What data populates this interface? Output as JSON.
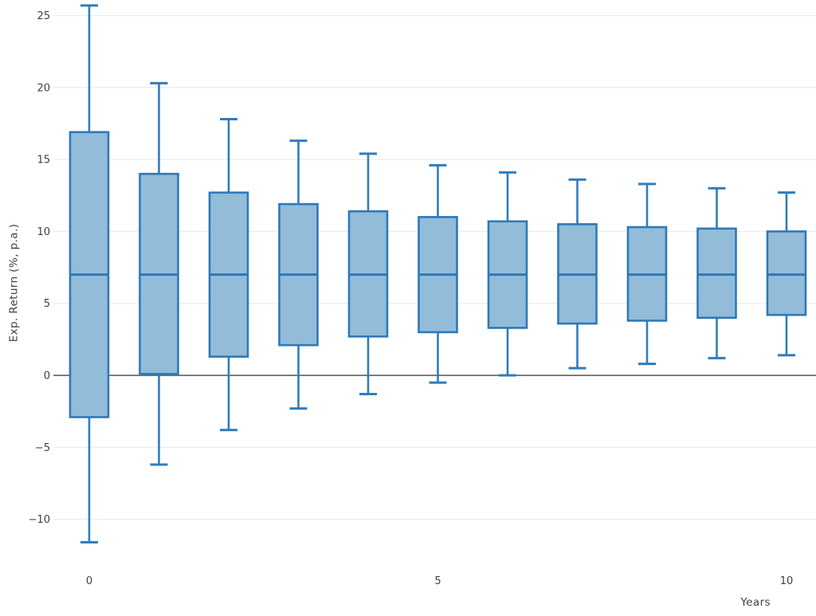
{
  "chart_data": {
    "type": "boxplot",
    "title": "",
    "xlabel": "Years",
    "ylabel": "Exp. Return (%, p.a.)",
    "grid": "horizontal-only",
    "legend": "none",
    "xlim": [
      -0.514,
      10.423
    ],
    "ylim": [
      -13.23,
      26.08
    ],
    "zero_line": true,
    "x_ticks": [
      {
        "v": 0,
        "label": "0"
      },
      {
        "v": 5,
        "label": "5"
      },
      {
        "v": 10,
        "label": "10"
      }
    ],
    "y_ticks": [
      {
        "v": -10,
        "label": "−10"
      },
      {
        "v": -5,
        "label": "−5"
      },
      {
        "v": 0,
        "label": "0"
      },
      {
        "v": 5,
        "label": "5"
      },
      {
        "v": 10,
        "label": "10"
      },
      {
        "v": 15,
        "label": "15"
      },
      {
        "v": 20,
        "label": "20"
      },
      {
        "v": 25,
        "label": "25"
      }
    ],
    "boxes": [
      {
        "year": 0,
        "low": -11.6,
        "q1": -2.9,
        "median": 7.0,
        "q3": 16.9,
        "high": 25.7
      },
      {
        "year": 1,
        "low": -6.2,
        "q1": 0.1,
        "median": 7.0,
        "q3": 14.0,
        "high": 20.3
      },
      {
        "year": 2,
        "low": -3.8,
        "q1": 1.3,
        "median": 7.0,
        "q3": 12.7,
        "high": 17.8
      },
      {
        "year": 3,
        "low": -2.3,
        "q1": 2.1,
        "median": 7.0,
        "q3": 11.9,
        "high": 16.3
      },
      {
        "year": 4,
        "low": -1.3,
        "q1": 2.7,
        "median": 7.0,
        "q3": 11.4,
        "high": 15.4
      },
      {
        "year": 5,
        "low": -0.5,
        "q1": 3.0,
        "median": 7.0,
        "q3": 11.0,
        "high": 14.6
      },
      {
        "year": 6,
        "low": 0.0,
        "q1": 3.3,
        "median": 7.0,
        "q3": 10.7,
        "high": 14.1
      },
      {
        "year": 7,
        "low": 0.5,
        "q1": 3.6,
        "median": 7.0,
        "q3": 10.5,
        "high": 13.6
      },
      {
        "year": 8,
        "low": 0.8,
        "q1": 3.8,
        "median": 7.0,
        "q3": 10.3,
        "high": 13.3
      },
      {
        "year": 9,
        "low": 1.2,
        "q1": 4.0,
        "median": 7.0,
        "q3": 10.2,
        "high": 13.0
      },
      {
        "year": 10,
        "low": 1.4,
        "q1": 4.2,
        "median": 7.0,
        "q3": 10.0,
        "high": 12.7
      }
    ]
  },
  "colors": {
    "background": "#ffffff",
    "box_fill": "#93bcd9",
    "box_border": "#2d79b8",
    "median_line": "#2d79b8",
    "whisker": "#2f7dbd",
    "grid": "#ececec",
    "zero_line": "#747474",
    "text": "#3f3f3f"
  }
}
